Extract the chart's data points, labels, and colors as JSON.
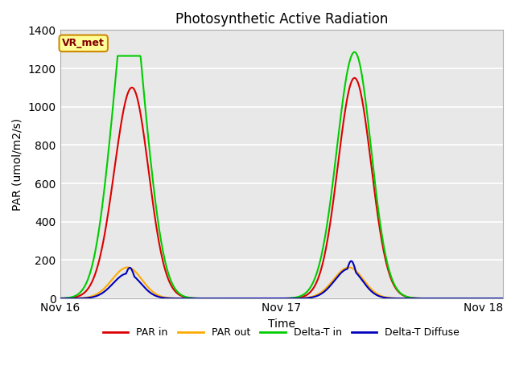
{
  "title": "Photosynthetic Active Radiation",
  "xlabel": "Time",
  "ylabel": "PAR (umol/m2/s)",
  "ylim": [
    0,
    1400
  ],
  "yticks": [
    0,
    200,
    400,
    600,
    800,
    1000,
    1200,
    1400
  ],
  "xtick_labels": [
    "Nov 16",
    "Nov 17",
    "Nov 18"
  ],
  "plot_bg_color": "#e8e8e8",
  "grid_color": "#ffffff",
  "annotation_text": "VR_met",
  "annotation_bg": "#ffff99",
  "annotation_border": "#cc8800",
  "colors": {
    "PAR in": "#dd0000",
    "PAR out": "#ffaa00",
    "Delta-T in": "#00cc00",
    "Delta-T Diffuse": "#0000bb"
  },
  "legend_labels": [
    "PAR in",
    "PAR out",
    "Delta-T in",
    "Delta-T Diffuse"
  ]
}
